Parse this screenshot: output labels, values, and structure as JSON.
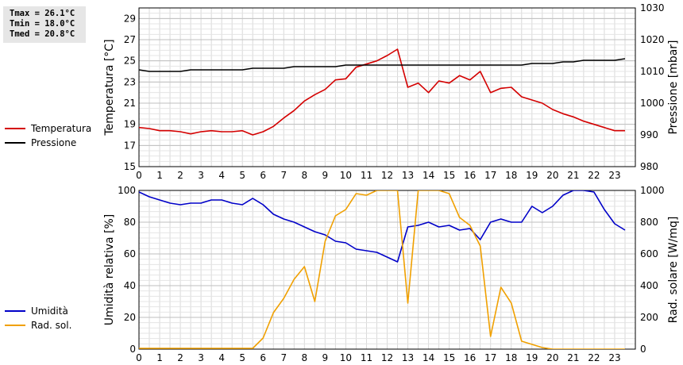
{
  "stats": {
    "tmax": "Tmax = 26.1°C",
    "tmin": "Tmin = 18.0°C",
    "tmed": "Tmed = 20.8°C"
  },
  "legend_top": [
    {
      "label": "Temperatura",
      "color": "#d40000"
    },
    {
      "label": "Pressione",
      "color": "#000000"
    }
  ],
  "legend_bottom": [
    {
      "label": "Umidità",
      "color": "#0000c8"
    },
    {
      "label": "Rad. sol.",
      "color": "#f0a000"
    }
  ],
  "chart_data": [
    {
      "type": "line",
      "x": [
        0,
        0.5,
        1,
        1.5,
        2,
        2.5,
        3,
        3.5,
        4,
        4.5,
        5,
        5.5,
        6,
        6.5,
        7,
        7.5,
        8,
        8.5,
        9,
        9.5,
        10,
        10.5,
        11,
        11.5,
        12,
        12.5,
        13,
        13.5,
        14,
        14.5,
        15,
        15.5,
        16,
        16.5,
        17,
        17.5,
        18,
        18.5,
        19,
        19.5,
        20,
        20.5,
        21,
        21.5,
        22,
        22.5,
        23,
        23.5
      ],
      "xticks": [
        0,
        1,
        2,
        3,
        4,
        5,
        6,
        7,
        8,
        9,
        10,
        11,
        12,
        13,
        14,
        15,
        16,
        17,
        18,
        19,
        20,
        21,
        22,
        23
      ],
      "xlim": [
        0,
        24
      ],
      "ylabel": "Temperatura [°C]",
      "ylim": [
        15,
        30
      ],
      "yticks": [
        15,
        17,
        19,
        21,
        23,
        25,
        27,
        29
      ],
      "y2label": "Pressione [mbar]",
      "y2lim": [
        980,
        1030
      ],
      "y2ticks": [
        980,
        990,
        1000,
        1010,
        1020,
        1030
      ],
      "grid": true,
      "series": [
        {
          "name": "Temperatura",
          "axis": "left",
          "color": "#d40000",
          "values": [
            18.7,
            18.6,
            18.4,
            18.4,
            18.3,
            18.1,
            18.3,
            18.4,
            18.3,
            18.3,
            18.4,
            18.0,
            18.3,
            18.8,
            19.6,
            20.3,
            21.2,
            21.8,
            22.3,
            23.2,
            23.3,
            24.4,
            24.7,
            25.0,
            25.5,
            26.1,
            22.5,
            22.9,
            22.0,
            23.1,
            22.9,
            23.6,
            23.2,
            24.0,
            22.0,
            22.4,
            22.5,
            21.6,
            21.3,
            21.0,
            20.4,
            20.0,
            19.7,
            19.3,
            19.0,
            18.7,
            18.4,
            18.4
          ]
        },
        {
          "name": "Pressione",
          "axis": "right",
          "color": "#000000",
          "values": [
            1010.5,
            1010,
            1010,
            1010,
            1010,
            1010.5,
            1010.5,
            1010.5,
            1010.5,
            1010.5,
            1010.5,
            1011,
            1011,
            1011,
            1011,
            1011.5,
            1011.5,
            1011.5,
            1011.5,
            1011.5,
            1012,
            1012,
            1012,
            1012,
            1012,
            1012,
            1012,
            1012,
            1012,
            1012,
            1012,
            1012,
            1012,
            1012,
            1012,
            1012,
            1012,
            1012,
            1012.5,
            1012.5,
            1012.5,
            1013,
            1013,
            1013.5,
            1013.5,
            1013.5,
            1013.5,
            1014
          ]
        }
      ]
    },
    {
      "type": "line",
      "x": [
        0,
        0.5,
        1,
        1.5,
        2,
        2.5,
        3,
        3.5,
        4,
        4.5,
        5,
        5.5,
        6,
        6.5,
        7,
        7.5,
        8,
        8.5,
        9,
        9.5,
        10,
        10.5,
        11,
        11.5,
        12,
        12.5,
        13,
        13.5,
        14,
        14.5,
        15,
        15.5,
        16,
        16.5,
        17,
        17.5,
        18,
        18.5,
        19,
        19.5,
        20,
        20.5,
        21,
        21.5,
        22,
        22.5,
        23,
        23.5
      ],
      "xticks": [
        0,
        1,
        2,
        3,
        4,
        5,
        6,
        7,
        8,
        9,
        10,
        11,
        12,
        13,
        14,
        15,
        16,
        17,
        18,
        19,
        20,
        21,
        22,
        23
      ],
      "xlim": [
        0,
        24
      ],
      "ylabel": "Umidità relativa [%]",
      "ylim": [
        0,
        100
      ],
      "yticks": [
        0,
        20,
        40,
        60,
        80,
        100
      ],
      "y2label": "Rad. solare [W/mq]",
      "y2lim": [
        0,
        1000
      ],
      "y2ticks": [
        0,
        200,
        400,
        600,
        800,
        1000
      ],
      "grid": true,
      "series": [
        {
          "name": "Umidità",
          "axis": "left",
          "color": "#0000c8",
          "values": [
            99,
            96,
            94,
            92,
            91,
            92,
            92,
            94,
            94,
            92,
            91,
            95,
            91,
            85,
            82,
            80,
            77,
            74,
            72,
            68,
            67,
            63,
            62,
            61,
            58,
            55,
            77,
            78,
            80,
            77,
            78,
            75,
            76,
            69,
            80,
            82,
            80,
            80,
            90,
            86,
            90,
            97,
            100,
            100,
            99,
            88,
            79,
            75
          ]
        },
        {
          "name": "Rad. sol.",
          "axis": "right",
          "color": "#f0a000",
          "values": [
            5,
            5,
            5,
            5,
            5,
            5,
            5,
            5,
            5,
            5,
            5,
            5,
            70,
            230,
            320,
            440,
            520,
            300,
            680,
            840,
            880,
            980,
            970,
            1000,
            1000,
            1000,
            290,
            1000,
            1000,
            1000,
            980,
            830,
            780,
            650,
            80,
            390,
            290,
            50,
            30,
            10,
            0,
            0,
            0,
            0,
            0,
            0,
            0,
            0
          ]
        }
      ]
    }
  ]
}
